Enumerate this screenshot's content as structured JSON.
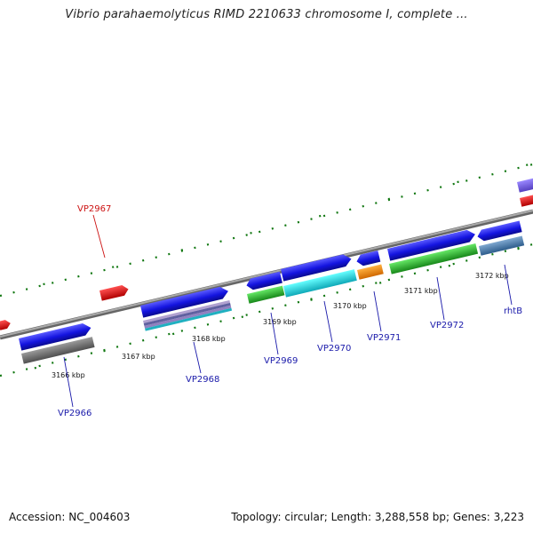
{
  "title": "Vibrio parahaemolyticus RIMD 2210633 chromosome I, complete ...",
  "footer": {
    "accession": "Accession: NC_004603",
    "summary": "Topology: circular; Length: 3,288,558 bp; Genes: 3,223"
  },
  "colors": {
    "backbone": "#888888",
    "tick": "#117711",
    "gene_label": "#1a1aaa",
    "highlight_label": "#cc1111"
  },
  "kbp_labels": [
    "3166 kbp",
    "3167 kbp",
    "3168 kbp",
    "3169 kbp",
    "3170 kbp",
    "3171 kbp",
    "3172 kbp"
  ],
  "genes": [
    {
      "id": "g1",
      "label": "VP2966",
      "color": "#1a1ae6"
    },
    {
      "id": "g2",
      "label": "VP2968",
      "color": "#1a1ae6"
    },
    {
      "id": "g3",
      "label": "VP2969",
      "color": "#1a1ae6"
    },
    {
      "id": "g4",
      "label": "VP2970",
      "color": "#1a1ae6"
    },
    {
      "id": "g5",
      "label": "VP2971",
      "color": "#1a1ae6"
    },
    {
      "id": "g6",
      "label": "VP2972",
      "color": "#1a1ae6"
    },
    {
      "id": "g7",
      "label": "rhtB",
      "color": "#1a1ae6"
    },
    {
      "id": "g8",
      "label": "VP2967",
      "color": "#ee1111"
    }
  ]
}
